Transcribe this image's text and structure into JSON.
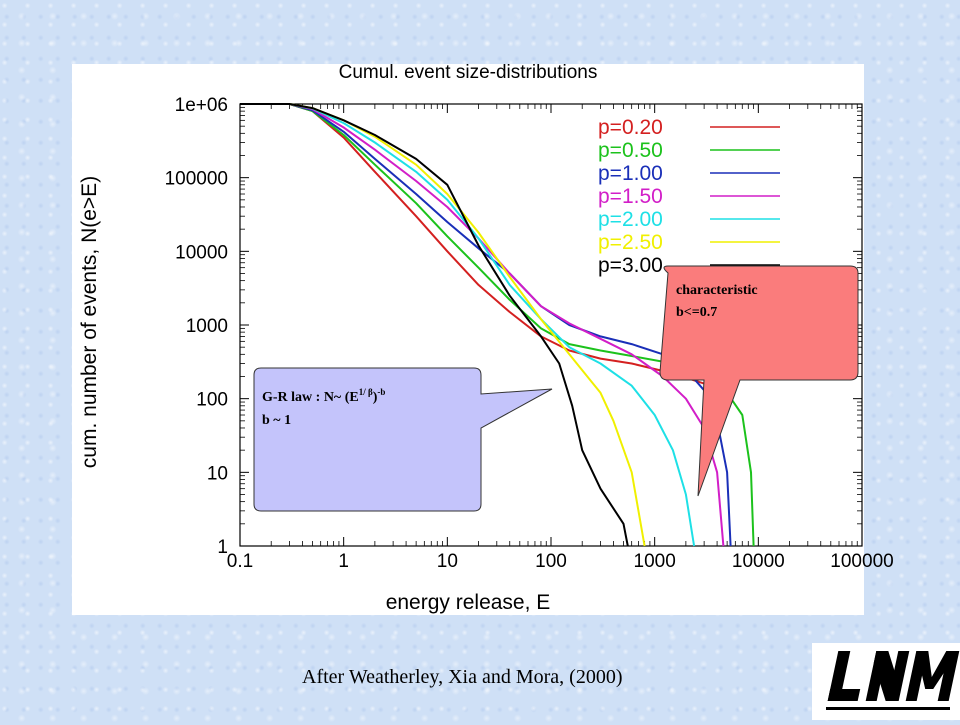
{
  "chart_data": {
    "type": "line",
    "title": "Cumul. event size-distributions",
    "xlabel": "energy release, E",
    "ylabel": "cum. number of events, N(e>E)",
    "x_scale": "log",
    "y_scale": "log",
    "xlim": [
      0.1,
      100000
    ],
    "ylim": [
      1,
      1000000
    ],
    "x_ticks": [
      "0.1",
      "1",
      "10",
      "100",
      "1000",
      "10000",
      "100000"
    ],
    "y_ticks": [
      "1",
      "10",
      "100",
      "1000",
      "10000",
      "100000",
      "1e+06"
    ],
    "legend_position": "top-right",
    "series": [
      {
        "name": "p=0.20",
        "color": "#d42020",
        "x": [
          0.1,
          0.3,
          0.5,
          1,
          2,
          5,
          10,
          20,
          40,
          80,
          150,
          300,
          600,
          1500,
          3000,
          6000
        ],
        "y": [
          1000000,
          1000000,
          800000,
          350000,
          120000,
          30000,
          10000,
          3500,
          1500,
          700,
          450,
          350,
          300,
          220,
          160,
          120
        ]
      },
      {
        "name": "p=0.50",
        "color": "#1cc21c",
        "x": [
          0.1,
          0.3,
          0.5,
          1,
          2,
          5,
          10,
          20,
          40,
          80,
          150,
          300,
          600,
          1500,
          3000,
          5000,
          7000,
          8500,
          9000
        ],
        "y": [
          1000000,
          1000000,
          800000,
          380000,
          150000,
          45000,
          16000,
          6000,
          2200,
          900,
          550,
          450,
          380,
          300,
          220,
          120,
          60,
          10,
          1
        ]
      },
      {
        "name": "p=1.00",
        "color": "#1a2fb8",
        "x": [
          0.1,
          0.3,
          0.5,
          1,
          2,
          5,
          10,
          20,
          40,
          80,
          150,
          300,
          600,
          1200,
          2000,
          3000,
          4000,
          5000,
          5400
        ],
        "y": [
          1000000,
          1000000,
          820000,
          420000,
          180000,
          60000,
          25000,
          11000,
          5000,
          1800,
          1000,
          700,
          550,
          400,
          250,
          130,
          50,
          10,
          1
        ]
      },
      {
        "name": "p=1.50",
        "color": "#d21ec8",
        "x": [
          0.1,
          0.3,
          0.5,
          1,
          2,
          5,
          10,
          20,
          40,
          80,
          150,
          300,
          600,
          1200,
          2000,
          3000,
          4000,
          4600
        ],
        "y": [
          1000000,
          1000000,
          850000,
          480000,
          240000,
          90000,
          40000,
          15000,
          5000,
          1800,
          1050,
          650,
          400,
          200,
          100,
          40,
          10,
          1
        ]
      },
      {
        "name": "p=2.00",
        "color": "#1ee0e6",
        "x": [
          0.1,
          0.3,
          0.5,
          1,
          2,
          5,
          10,
          20,
          40,
          80,
          150,
          300,
          600,
          1000,
          1500,
          2000,
          2400
        ],
        "y": [
          1000000,
          1000000,
          870000,
          550000,
          300000,
          120000,
          50000,
          15000,
          3500,
          1200,
          500,
          300,
          150,
          60,
          20,
          5,
          1
        ]
      },
      {
        "name": "p=2.50",
        "color": "#f0f000",
        "x": [
          0.1,
          0.3,
          0.5,
          1,
          2,
          5,
          10,
          20,
          40,
          80,
          150,
          300,
          400,
          600,
          800
        ],
        "y": [
          1000000,
          1000000,
          880000,
          600000,
          360000,
          150000,
          60000,
          18000,
          4500,
          1200,
          400,
          120,
          50,
          10,
          1
        ]
      },
      {
        "name": "p=3.00",
        "color": "#000000",
        "x": [
          0.1,
          0.3,
          0.5,
          1,
          2,
          5,
          10,
          20,
          40,
          80,
          120,
          160,
          200,
          300,
          500,
          550
        ],
        "y": [
          1000000,
          1000000,
          880000,
          600000,
          380000,
          180000,
          80000,
          12000,
          2500,
          700,
          300,
          80,
          20,
          6,
          2,
          1
        ]
      }
    ]
  },
  "callouts": {
    "gr_law": {
      "line1": "G-R law : N~ (E",
      "sup1": "1/ β",
      "mid": ")",
      "sup2": "-b",
      "line2": "b ~ 1"
    },
    "characteristic": {
      "line1": "characteristic",
      "line2": "b<=0.7"
    }
  },
  "caption": "After Weatherley, Xia and Mora, (2000)",
  "logo": {
    "text": "LNM"
  }
}
